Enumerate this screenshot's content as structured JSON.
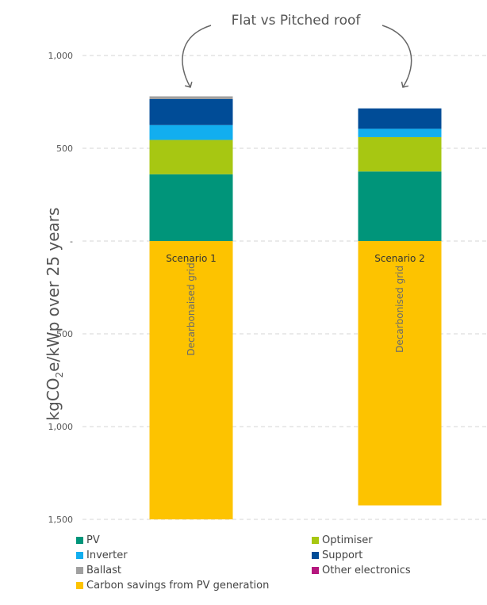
{
  "chart_data": {
    "type": "bar",
    "stacked": true,
    "categories": [
      "Scenario 1",
      "Scenario 2"
    ],
    "bar_labels": [
      "Decarbonaised grid",
      "Decarbonised grid"
    ],
    "annotation": "Flat vs Pitched roof",
    "ylabel_parts": {
      "pre": "kgCO",
      "sub": "2",
      "post": "e/kWp over 25 years"
    },
    "ylim": [
      -1500,
      1000
    ],
    "yticks": [
      {
        "value": 1000,
        "label": "1,000"
      },
      {
        "value": 500,
        "label": "500"
      },
      {
        "value": 0,
        "label": "-"
      },
      {
        "value": -500,
        "label": "-500"
      },
      {
        "value": -1000,
        "label": "1,000"
      },
      {
        "value": -1500,
        "label": "1,500"
      }
    ],
    "grid": true,
    "series": [
      {
        "name": "PV",
        "color": "#00957A",
        "values": [
          360,
          375
        ]
      },
      {
        "name": "Optimiser",
        "color": "#A7C712",
        "values": [
          185,
          185
        ]
      },
      {
        "name": "Inverter",
        "color": "#12AEEF",
        "values": [
          80,
          45
        ]
      },
      {
        "name": "Support",
        "color": "#004C97",
        "values": [
          140,
          110
        ]
      },
      {
        "name": "Ballast",
        "color": "#A0A0A0",
        "values": [
          15,
          0
        ]
      },
      {
        "name": "Other electronics",
        "color": "#B5177E",
        "values": [
          0,
          0
        ]
      },
      {
        "name": "Carbon savings from PV generation",
        "color": "#FDC300",
        "values": [
          -1500,
          -1425
        ]
      }
    ]
  }
}
